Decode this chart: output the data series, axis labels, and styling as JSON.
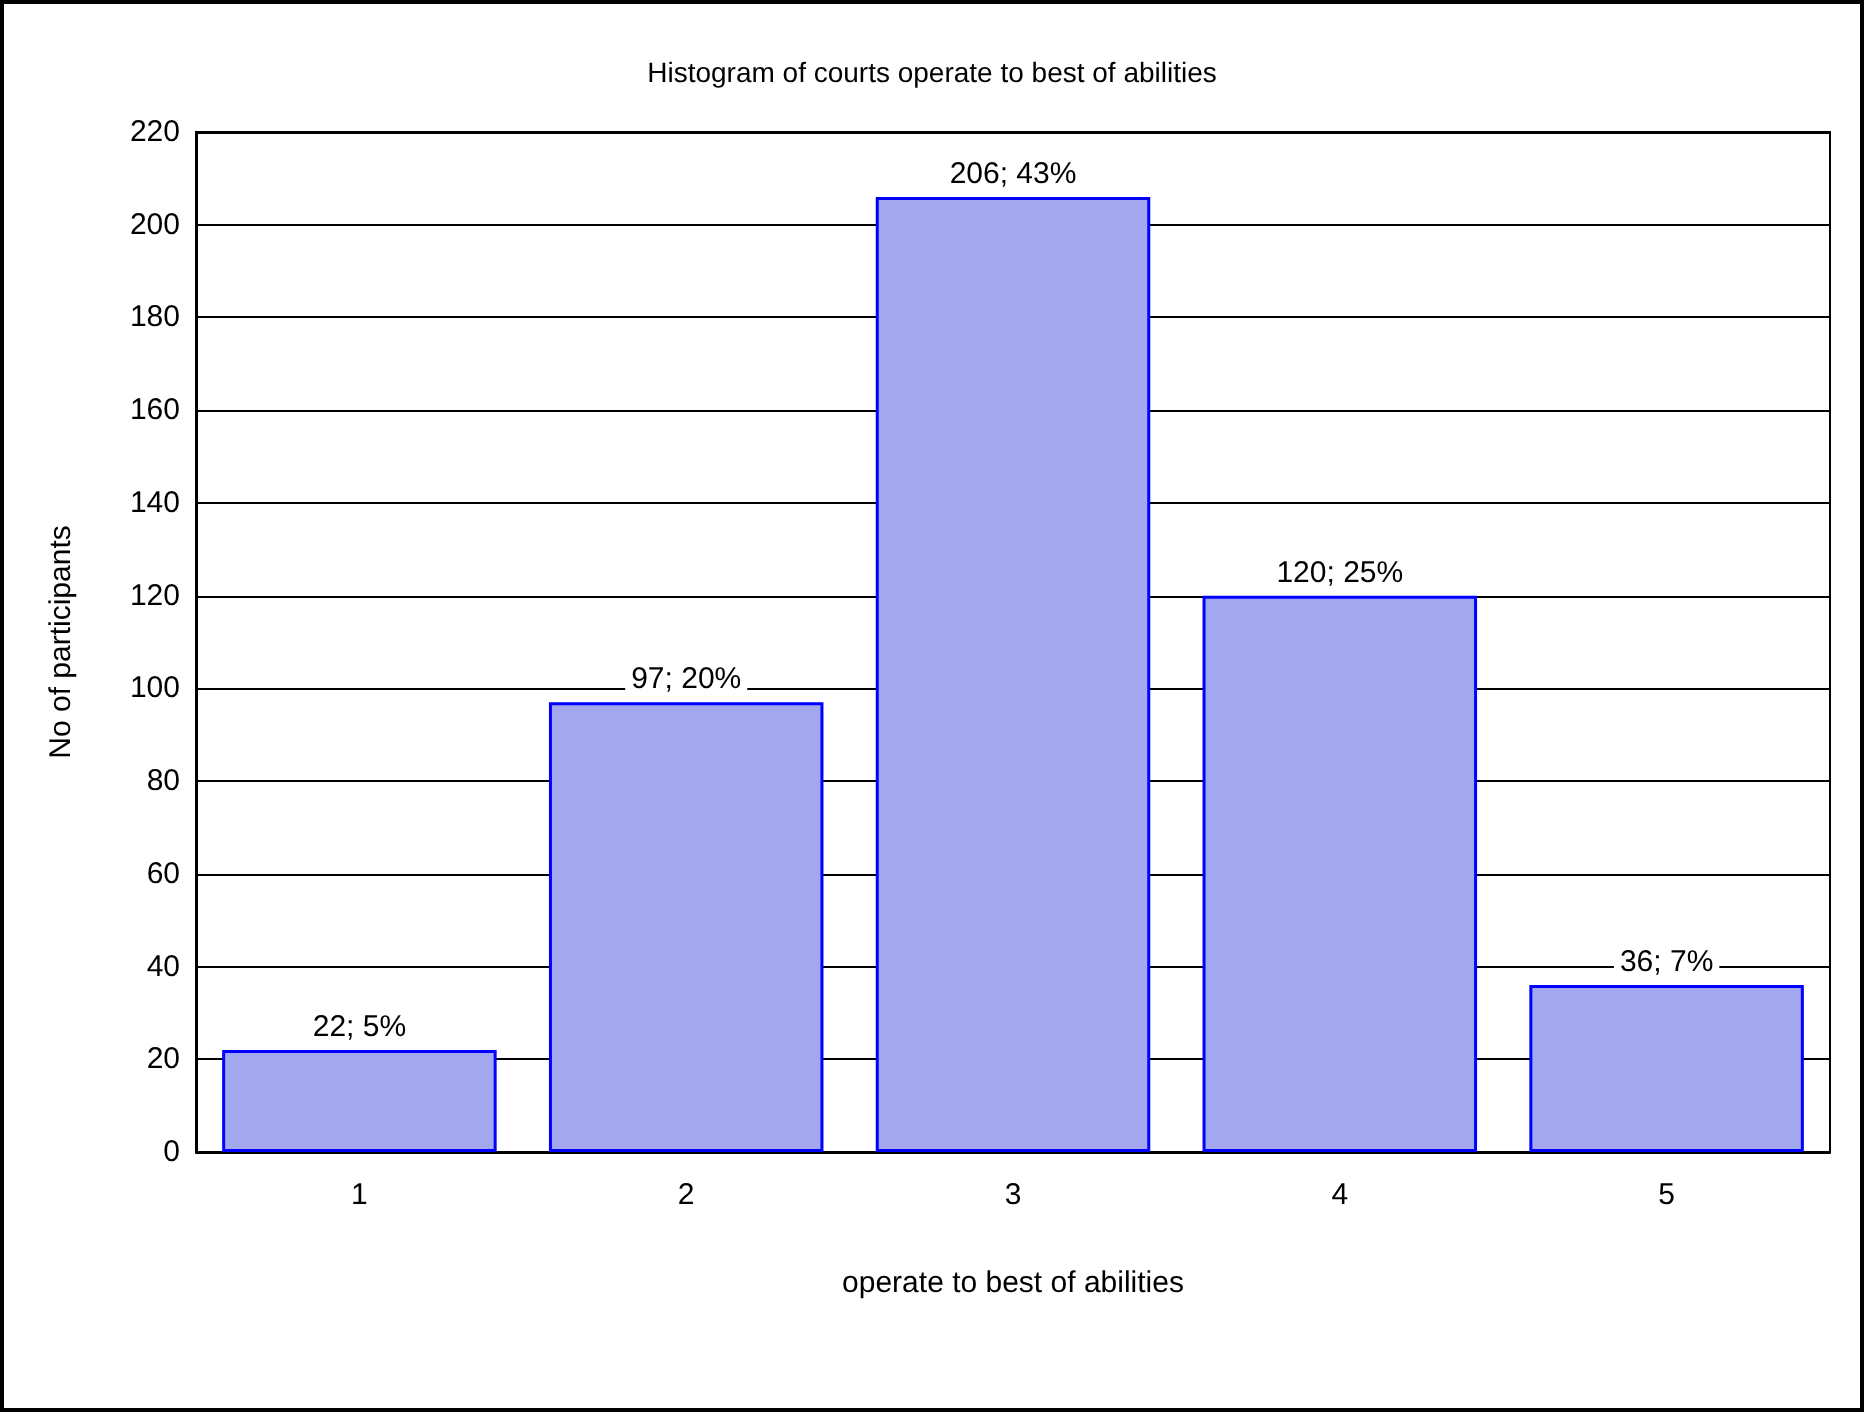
{
  "chart_data": {
    "type": "bar",
    "title": "Histogram of courts operate to best of abilities",
    "xlabel": "operate to best of abilities",
    "ylabel": "No of participants",
    "categories": [
      "1",
      "2",
      "3",
      "4",
      "5"
    ],
    "values": [
      22,
      97,
      206,
      120,
      36
    ],
    "value_labels": [
      "22; 5%",
      "97; 20%",
      "206; 43%",
      "120; 25%",
      "36; 7%"
    ],
    "color": "#a3a8ee",
    "ylim": [
      0,
      220
    ],
    "yticks": [
      0,
      20,
      40,
      60,
      80,
      100,
      120,
      140,
      160,
      180,
      200,
      220
    ],
    "grid": "y"
  }
}
